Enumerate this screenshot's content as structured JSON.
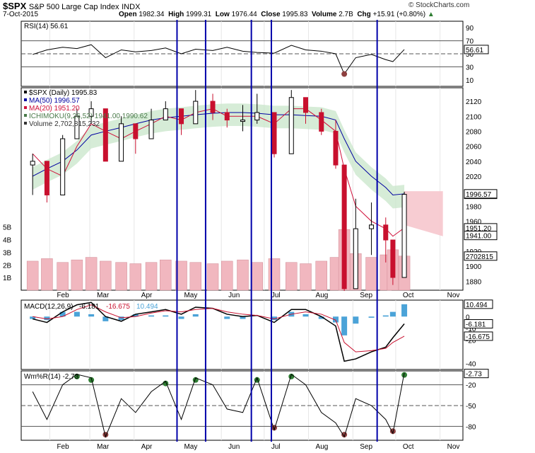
{
  "header": {
    "symbol": "$SPX",
    "name": "S&P 500 Large Cap Index",
    "exchange": "INDX",
    "date": "7-Oct-2015",
    "open_label": "Open",
    "open": "1982.34",
    "high_label": "High",
    "high": "1999.31",
    "low_label": "Low",
    "low": "1976.44",
    "close_label": "Close",
    "close": "1995.83",
    "volume_label": "Volume",
    "volume": "2.7B",
    "chg_label": "Chg",
    "chg": "+15.91 (+0.80%)",
    "copyright": "© StockCharts.com"
  },
  "colors": {
    "up": "#000000",
    "down": "#c8102e",
    "ma50": "#0000a0",
    "ma20": "#d0103a",
    "cloud_bull": "#c8e6c9",
    "cloud_bear": "#f6c6cd",
    "vol_bar": "#f1b7bf",
    "macd_hist": "#4ba3d8",
    "vertical_lines": "#0000aa",
    "overbought": "#2e7d32",
    "oversold": "#8d3f3f"
  },
  "chart_data": [
    {
      "type": "line",
      "panel": "RSI",
      "legend": "RSI(14) 56.61",
      "current_badge": "56.61",
      "yticks": [
        "90",
        "70",
        "50",
        "30",
        "10"
      ],
      "ylim": [
        0,
        100
      ],
      "reference_lines": [
        70,
        50,
        30
      ],
      "x": [
        "Jan-20",
        "Jan-30",
        "Feb-10",
        "Feb-20",
        "Mar-02",
        "Mar-12",
        "Mar-23",
        "Apr-02",
        "Apr-13",
        "Apr-23",
        "May-04",
        "May-14",
        "May-26",
        "Jun-05",
        "Jun-16",
        "Jun-26",
        "Jul-08",
        "Jul-20",
        "Jul-30",
        "Aug-10",
        "Aug-20",
        "Aug-26",
        "Sep-03",
        "Sep-14",
        "Sep-24",
        "Sep-29",
        "Oct-07"
      ],
      "values": [
        49,
        56,
        60,
        58,
        64,
        44,
        56,
        53,
        55,
        59,
        50,
        57,
        55,
        60,
        54,
        52,
        51,
        63,
        56,
        54,
        50,
        19,
        44,
        49,
        41,
        38,
        56.61
      ]
    },
    {
      "type": "candlestick",
      "panel": "Price",
      "legend": [
        "$SPX (Daily) 1995.83",
        "MA(50) 1996.57",
        "MA(20) 1951.20",
        "ICHIMOKU(9,26,52) 1941.00 1990.62",
        "Volume 2,702,815,232"
      ],
      "yticks": [
        "2120",
        "2100",
        "2080",
        "2060",
        "2040",
        "2020",
        "1980",
        "1960",
        "1920",
        "1900",
        "1880"
      ],
      "ylim": [
        1868,
        2138
      ],
      "badges": [
        "1995.83",
        "1996.57",
        "1951.20",
        "1941.00"
      ],
      "x": [
        "Jan-20",
        "Jan-30",
        "Feb-10",
        "Feb-20",
        "Mar-02",
        "Mar-12",
        "Mar-23",
        "Apr-02",
        "Apr-13",
        "Apr-23",
        "May-04",
        "May-14",
        "May-26",
        "Jun-05",
        "Jun-16",
        "Jun-26",
        "Jul-08",
        "Jul-20",
        "Jul-30",
        "Aug-10",
        "Aug-20",
        "Aug-26",
        "Sep-03",
        "Sep-14",
        "Sep-24",
        "Sep-29",
        "Oct-07"
      ],
      "close": [
        2040,
        1995,
        2070,
        2100,
        2110,
        2040,
        2090,
        2070,
        2095,
        2110,
        2090,
        2120,
        2105,
        2095,
        2095,
        2105,
        2050,
        2125,
        2105,
        2080,
        2035,
        1870,
        1950,
        1955,
        1935,
        1885,
        1995.83
      ],
      "high": [
        2050,
        2030,
        2075,
        2110,
        2120,
        2075,
        2100,
        2090,
        2110,
        2120,
        2100,
        2135,
        2130,
        2110,
        2115,
        2130,
        2085,
        2135,
        2115,
        2110,
        2095,
        1950,
        1990,
        1985,
        1965,
        1920,
        1999.31
      ],
      "low": [
        1995,
        1985,
        2040,
        2080,
        2090,
        2040,
        2060,
        2050,
        2080,
        2095,
        2075,
        2095,
        2095,
        2085,
        2080,
        2090,
        2045,
        2095,
        2090,
        2075,
        2030,
        1867,
        1900,
        1915,
        1905,
        1875,
        1976.44
      ],
      "ma50": [
        2020,
        2030,
        2040,
        2055,
        2075,
        2080,
        2085,
        2090,
        2095,
        2098,
        2100,
        2102,
        2104,
        2105,
        2105,
        2104,
        2102,
        2102,
        2101,
        2100,
        2095,
        2070,
        2040,
        2020,
        2005,
        1995,
        1996.57
      ],
      "ma20": [
        2050,
        2030,
        2020,
        2060,
        2090,
        2080,
        2070,
        2080,
        2090,
        2100,
        2095,
        2105,
        2110,
        2100,
        2100,
        2100,
        2090,
        2110,
        2110,
        2095,
        2080,
        2030,
        1980,
        1960,
        1950,
        1940,
        1951.2
      ],
      "volume_yticks": [
        "5B",
        "4B",
        "3B",
        "2B",
        "1B"
      ],
      "volume_badge": "2702815",
      "volume_billions": [
        2.3,
        2.5,
        2.2,
        2.4,
        2.6,
        2.3,
        2.2,
        2.1,
        2.2,
        2.4,
        2.3,
        2.2,
        2.1,
        2.3,
        2.4,
        2.2,
        2.5,
        2.2,
        2.1,
        2.3,
        2.6,
        4.8,
        2.9,
        2.6,
        2.8,
        3.2,
        2.7
      ]
    },
    {
      "type": "line",
      "panel": "MACD",
      "legend": [
        "MACD(12,26,9)",
        "-6.181",
        "-16.675",
        "10.494"
      ],
      "yticks": [
        "10",
        "0",
        "-10",
        "-20",
        "-40"
      ],
      "ylim": [
        -45,
        14
      ],
      "badges": [
        "10.494",
        "-6.181",
        "-16.675"
      ],
      "x": [
        "Jan-20",
        "Jan-30",
        "Feb-10",
        "Feb-20",
        "Mar-02",
        "Mar-12",
        "Mar-23",
        "Apr-02",
        "Apr-13",
        "Apr-23",
        "May-04",
        "May-14",
        "May-26",
        "Jun-05",
        "Jun-16",
        "Jun-26",
        "Jul-08",
        "Jul-20",
        "Jul-30",
        "Aug-10",
        "Aug-20",
        "Aug-26",
        "Sep-03",
        "Sep-14",
        "Sep-24",
        "Sep-29",
        "Oct-07"
      ],
      "macd": [
        -2,
        -5,
        4,
        10,
        12,
        0,
        -4,
        2,
        4,
        6,
        2,
        8,
        7,
        2,
        0,
        1,
        -5,
        6,
        6,
        0,
        -8,
        -38,
        -36,
        -30,
        -26,
        -18,
        -6.181
      ],
      "signal": [
        0,
        -2,
        0,
        6,
        10,
        4,
        -1,
        0,
        3,
        5,
        4,
        6,
        7,
        4,
        2,
        1,
        -2,
        2,
        4,
        2,
        -3,
        -22,
        -30,
        -29,
        -27,
        -22,
        -16.675
      ],
      "histogram": [
        -2,
        -3,
        4,
        4,
        2,
        -4,
        -3,
        2,
        1,
        1,
        -2,
        2,
        0,
        -2,
        -2,
        0,
        -3,
        4,
        2,
        -2,
        -5,
        -16,
        -6,
        -1,
        1,
        4,
        10.494
      ]
    },
    {
      "type": "line",
      "panel": "Williams %R",
      "legend": "Wm%R(14) -2.73",
      "current_badge": "-2.73",
      "yticks": [
        "-20",
        "-50",
        "-80"
      ],
      "ylim": [
        -100,
        0
      ],
      "reference_lines": [
        -20,
        -50,
        -80
      ],
      "x": [
        "Jan-20",
        "Jan-30",
        "Feb-10",
        "Feb-20",
        "Mar-02",
        "Mar-12",
        "Mar-23",
        "Apr-02",
        "Apr-13",
        "Apr-23",
        "May-04",
        "May-14",
        "May-26",
        "Jun-05",
        "Jun-16",
        "Jun-26",
        "Jul-08",
        "Jul-20",
        "Jul-30",
        "Aug-10",
        "Aug-20",
        "Aug-26",
        "Sep-03",
        "Sep-14",
        "Sep-24",
        "Sep-29",
        "Oct-07"
      ],
      "values": [
        -30,
        -70,
        -20,
        -5,
        -10,
        -95,
        -40,
        -60,
        -30,
        -15,
        -70,
        -10,
        -20,
        -55,
        -60,
        -10,
        -85,
        -5,
        -20,
        -60,
        -75,
        -95,
        -40,
        -50,
        -70,
        -90,
        -2.73
      ]
    }
  ],
  "x_axis_months": [
    "Feb",
    "Mar",
    "Apr",
    "May",
    "Jun",
    "Jul",
    "Aug",
    "Sep",
    "Oct",
    "Nov"
  ]
}
